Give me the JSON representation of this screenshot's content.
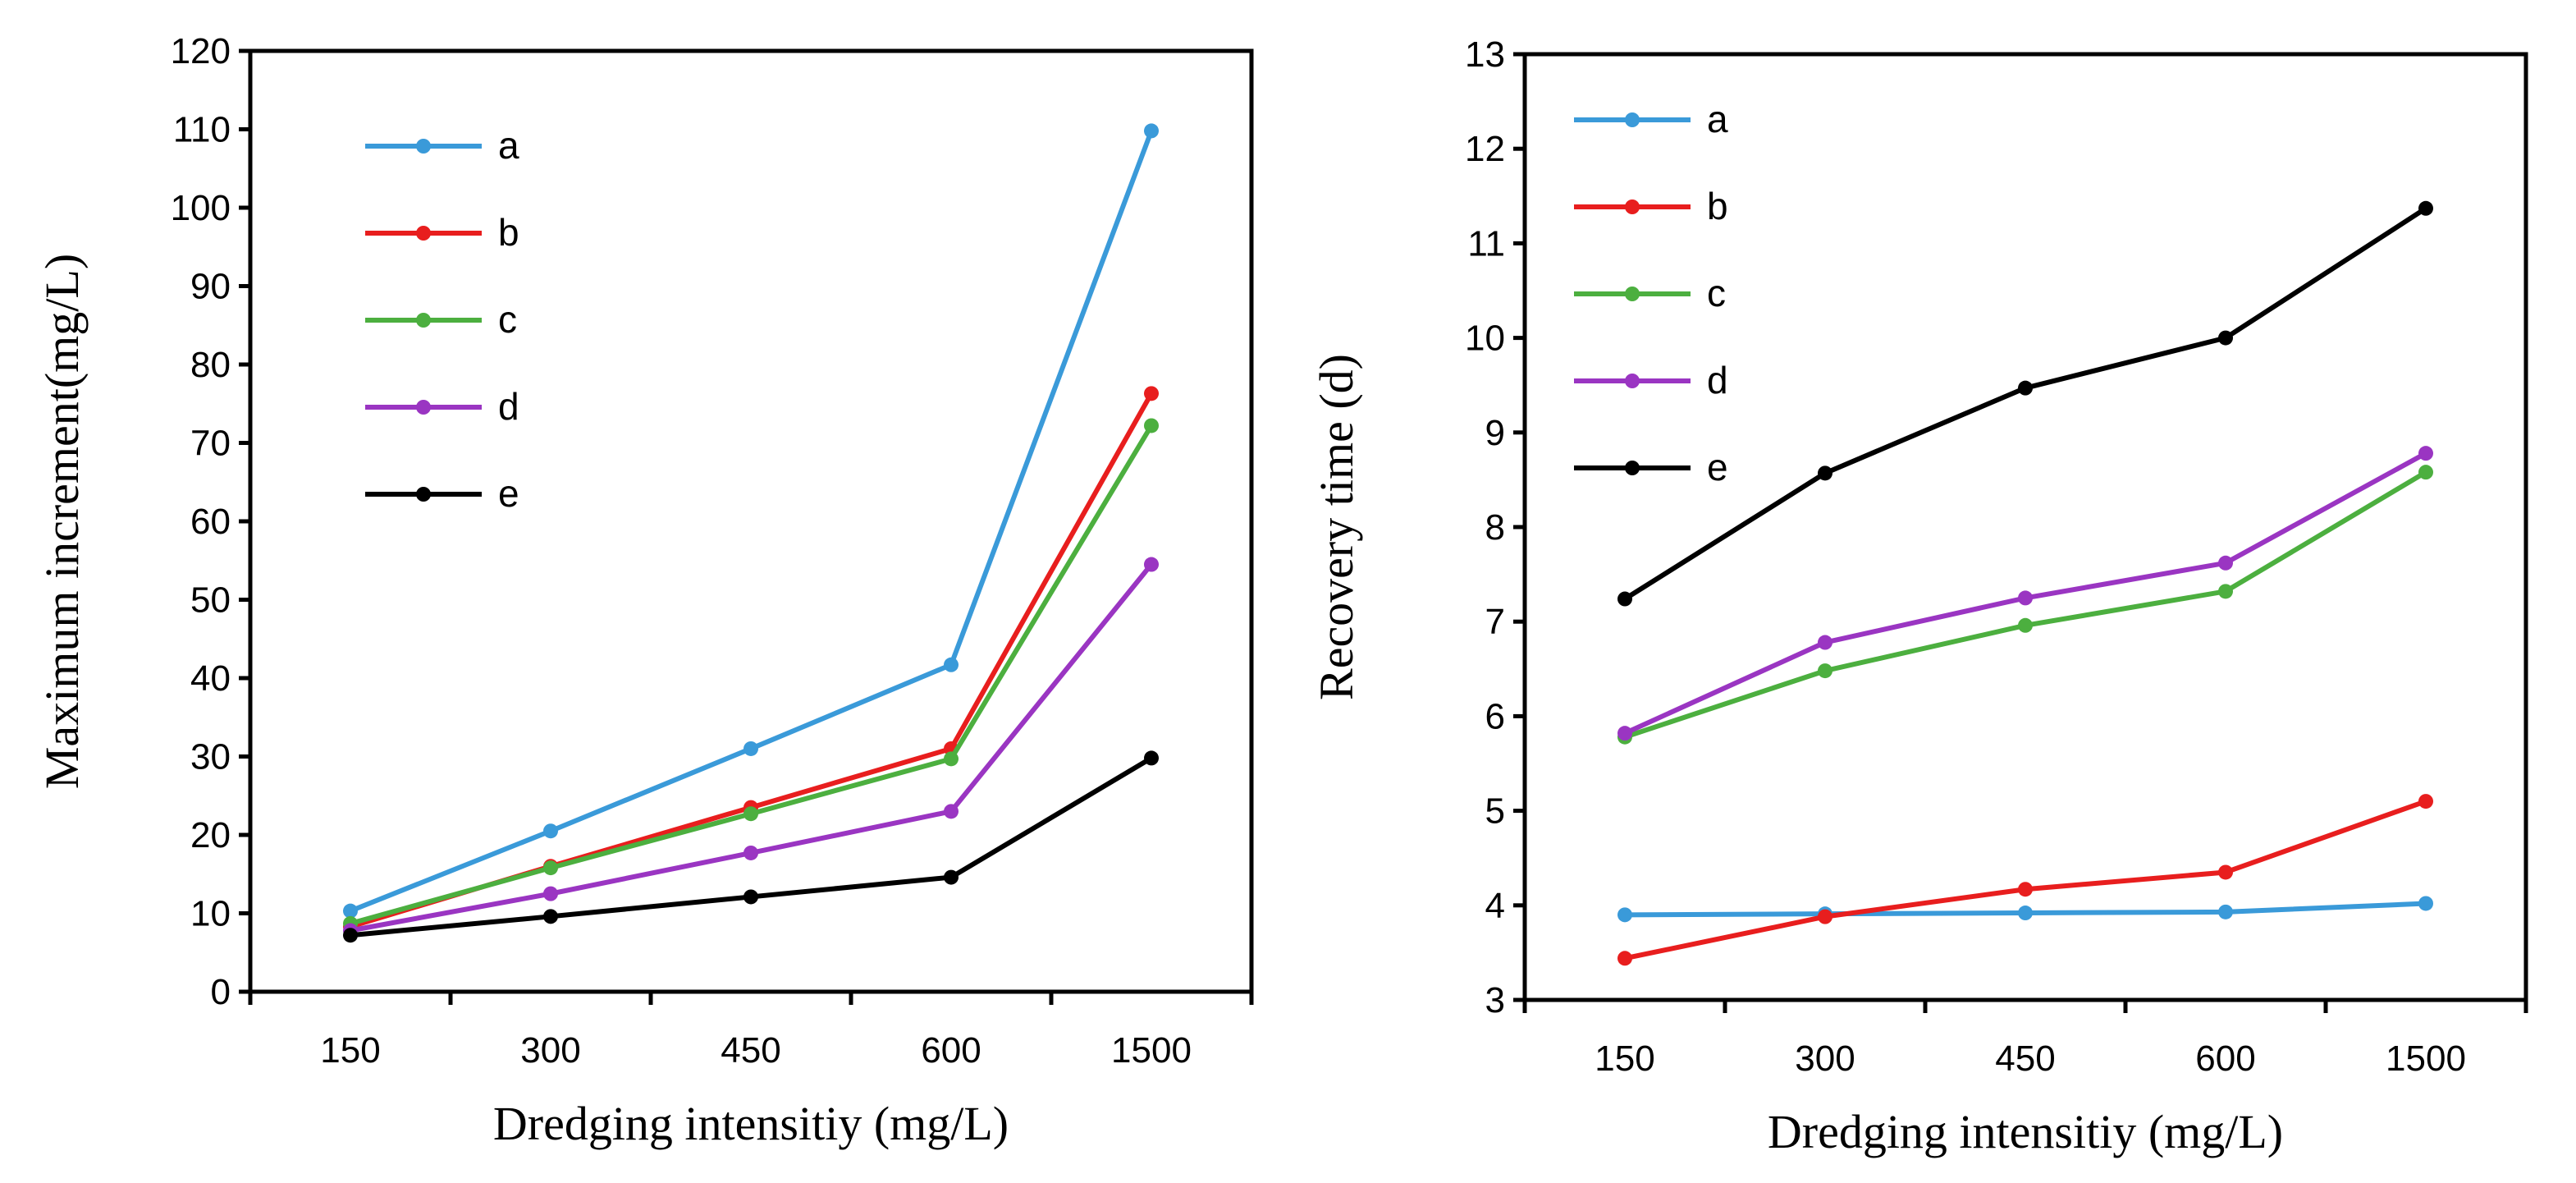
{
  "colors": {
    "a": "#3a9ad9",
    "b": "#e81e1e",
    "c": "#4caf3f",
    "d": "#9a35c2",
    "e": "#000000"
  },
  "chart_data": [
    {
      "type": "line",
      "title": "",
      "xlabel": "Dredging intensitiy (mg/L)",
      "ylabel": "Maximum increment(mg/L)",
      "categories": [
        "150",
        "300",
        "450",
        "600",
        "1500"
      ],
      "ylim": [
        0,
        120
      ],
      "yticks": [
        0,
        10,
        20,
        30,
        40,
        50,
        60,
        70,
        80,
        90,
        100,
        110,
        120
      ],
      "legend_position": "top-left",
      "grid": false,
      "series": [
        {
          "name": "a",
          "values": [
            10.3,
            20.5,
            31.0,
            41.7,
            109.8
          ]
        },
        {
          "name": "b",
          "values": [
            8.3,
            16.0,
            23.5,
            31.0,
            76.3
          ]
        },
        {
          "name": "c",
          "values": [
            8.7,
            15.8,
            22.7,
            29.7,
            72.2
          ]
        },
        {
          "name": "d",
          "values": [
            7.8,
            12.5,
            17.7,
            23.0,
            54.5
          ]
        },
        {
          "name": "e",
          "values": [
            7.2,
            9.6,
            12.1,
            14.6,
            29.8
          ]
        }
      ]
    },
    {
      "type": "line",
      "title": "",
      "xlabel": "Dredging intensitiy (mg/L)",
      "ylabel": "Recovery time (d)",
      "categories": [
        "150",
        "300",
        "450",
        "600",
        "1500"
      ],
      "ylim": [
        3,
        13
      ],
      "yticks": [
        3,
        4,
        5,
        6,
        7,
        8,
        9,
        10,
        11,
        12,
        13
      ],
      "legend_position": "top-left",
      "grid": false,
      "series": [
        {
          "name": "a",
          "values": [
            3.9,
            3.91,
            3.92,
            3.93,
            4.02
          ]
        },
        {
          "name": "b",
          "values": [
            3.44,
            3.88,
            4.17,
            4.35,
            5.1
          ]
        },
        {
          "name": "c",
          "values": [
            5.78,
            6.48,
            6.96,
            7.32,
            8.58
          ]
        },
        {
          "name": "d",
          "values": [
            5.82,
            6.78,
            7.25,
            7.62,
            8.78
          ]
        },
        {
          "name": "e",
          "values": [
            7.24,
            8.57,
            9.47,
            10.0,
            11.37
          ]
        }
      ]
    }
  ]
}
